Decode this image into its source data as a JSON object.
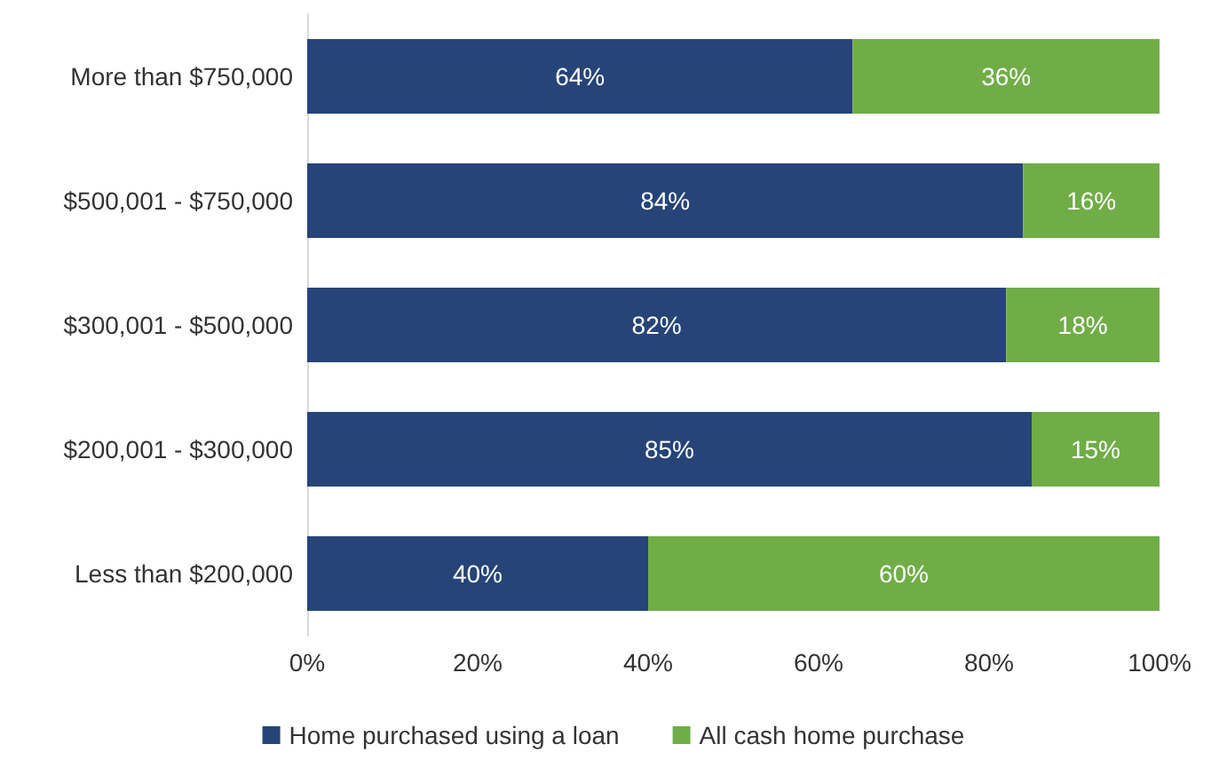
{
  "chart_data": {
    "type": "bar",
    "orientation": "horizontal",
    "stacked": true,
    "categories": [
      "More than $750,000",
      "$500,001 - $750,000",
      "$300,001 - $500,000",
      "$200,001 - $300,000",
      "Less than $200,000"
    ],
    "series": [
      {
        "name": "Home purchased using a loan",
        "color": "#264478",
        "values": [
          64,
          84,
          82,
          85,
          40
        ],
        "value_labels": [
          "64%",
          "84%",
          "82%",
          "85%",
          "40%"
        ]
      },
      {
        "name": "All cash home purchase",
        "color": "#70ad47",
        "values": [
          36,
          16,
          18,
          15,
          60
        ],
        "value_labels": [
          "36%",
          "16%",
          "18%",
          "15%",
          "60%"
        ]
      }
    ],
    "xlim": [
      0,
      100
    ],
    "xticks": [
      {
        "value": 0,
        "label": "0%"
      },
      {
        "value": 20,
        "label": "20%"
      },
      {
        "value": 40,
        "label": "40%"
      },
      {
        "value": 60,
        "label": "60%"
      },
      {
        "value": 80,
        "label": "80%"
      },
      {
        "value": 100,
        "label": "100%"
      }
    ],
    "grid": false,
    "legend": "bottom"
  }
}
